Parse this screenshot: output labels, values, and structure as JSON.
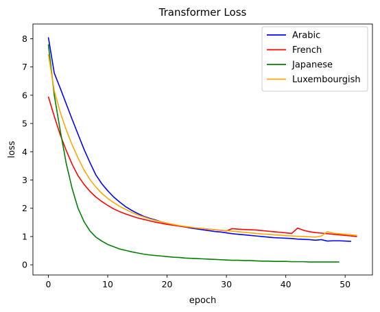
{
  "chart_data": {
    "type": "line",
    "title": "Transformer Loss",
    "xlabel": "epoch",
    "ylabel": "loss",
    "xlim": [
      -2.6,
      54.6
    ],
    "ylim": [
      -0.36,
      8.52
    ],
    "xticks": [
      0,
      10,
      20,
      30,
      40,
      50
    ],
    "yticks": [
      0,
      1,
      2,
      3,
      4,
      5,
      6,
      7,
      8
    ],
    "grid": false,
    "legend_position": "top-right",
    "series": [
      {
        "name": "Arabic",
        "color": "#0000ff",
        "x": [
          0,
          1,
          2,
          3,
          4,
          5,
          6,
          7,
          8,
          9,
          10,
          11,
          12,
          13,
          14,
          15,
          16,
          17,
          18,
          19,
          20,
          21,
          22,
          23,
          24,
          25,
          26,
          27,
          28,
          29,
          30,
          31,
          32,
          33,
          34,
          35,
          36,
          37,
          38,
          39,
          40,
          41,
          42,
          43,
          44,
          45,
          46,
          47,
          48,
          49,
          50,
          51
        ],
        "y": [
          8.05,
          6.78,
          6.25,
          5.7,
          5.15,
          4.62,
          4.09,
          3.62,
          3.18,
          2.87,
          2.62,
          2.4,
          2.22,
          2.06,
          1.93,
          1.82,
          1.72,
          1.65,
          1.59,
          1.52,
          1.47,
          1.42,
          1.38,
          1.34,
          1.3,
          1.27,
          1.24,
          1.21,
          1.18,
          1.16,
          1.13,
          1.1,
          1.08,
          1.06,
          1.04,
          1.02,
          1.0,
          0.98,
          0.96,
          0.95,
          0.94,
          0.93,
          0.91,
          0.9,
          0.89,
          0.87,
          0.89,
          0.84,
          0.85,
          0.85,
          0.84,
          0.83
        ]
      },
      {
        "name": "French",
        "color": "#ff0000",
        "x": [
          0,
          1,
          2,
          3,
          4,
          5,
          6,
          7,
          8,
          9,
          10,
          11,
          12,
          13,
          14,
          15,
          16,
          17,
          18,
          19,
          20,
          21,
          22,
          23,
          24,
          25,
          26,
          27,
          28,
          29,
          30,
          31,
          32,
          33,
          34,
          35,
          36,
          37,
          38,
          39,
          40,
          41,
          42,
          43,
          44,
          45,
          46,
          47,
          48,
          49,
          50,
          51,
          52
        ],
        "y": [
          5.95,
          5.25,
          4.6,
          4.05,
          3.56,
          3.15,
          2.85,
          2.6,
          2.4,
          2.24,
          2.1,
          1.98,
          1.88,
          1.8,
          1.73,
          1.66,
          1.61,
          1.56,
          1.51,
          1.47,
          1.43,
          1.4,
          1.37,
          1.34,
          1.32,
          1.3,
          1.28,
          1.26,
          1.24,
          1.22,
          1.2,
          1.28,
          1.26,
          1.25,
          1.24,
          1.23,
          1.21,
          1.19,
          1.17,
          1.15,
          1.13,
          1.11,
          1.3,
          1.22,
          1.17,
          1.14,
          1.12,
          1.1,
          1.08,
          1.06,
          1.04,
          1.02,
          1.0
        ]
      },
      {
        "name": "Japanese",
        "color": "#008000",
        "x": [
          0,
          1,
          2,
          3,
          4,
          5,
          6,
          7,
          8,
          9,
          10,
          11,
          12,
          13,
          14,
          15,
          16,
          17,
          18,
          19,
          20,
          21,
          22,
          23,
          24,
          25,
          26,
          27,
          28,
          29,
          30,
          31,
          32,
          33,
          34,
          35,
          36,
          37,
          38,
          39,
          40,
          41,
          42,
          43,
          44,
          45,
          46,
          47,
          48,
          49
        ],
        "y": [
          7.8,
          6.0,
          4.75,
          3.6,
          2.7,
          2.0,
          1.53,
          1.2,
          0.98,
          0.84,
          0.72,
          0.64,
          0.56,
          0.51,
          0.46,
          0.42,
          0.38,
          0.35,
          0.33,
          0.31,
          0.29,
          0.27,
          0.26,
          0.24,
          0.23,
          0.22,
          0.21,
          0.2,
          0.19,
          0.18,
          0.17,
          0.16,
          0.16,
          0.15,
          0.15,
          0.14,
          0.13,
          0.13,
          0.12,
          0.12,
          0.12,
          0.11,
          0.11,
          0.11,
          0.1,
          0.1,
          0.1,
          0.1,
          0.1,
          0.1
        ]
      },
      {
        "name": "Luxembourgish",
        "color": "#ffa500",
        "x": [
          0,
          1,
          2,
          3,
          4,
          5,
          6,
          7,
          8,
          9,
          10,
          11,
          12,
          13,
          14,
          15,
          16,
          17,
          18,
          19,
          20,
          21,
          22,
          23,
          24,
          25,
          26,
          27,
          28,
          29,
          30,
          31,
          32,
          33,
          34,
          35,
          36,
          37,
          38,
          39,
          40,
          41,
          42,
          43,
          44,
          45,
          46,
          47,
          48,
          49,
          50,
          51,
          52
        ],
        "y": [
          7.45,
          6.15,
          5.4,
          4.78,
          4.25,
          3.78,
          3.36,
          3.02,
          2.75,
          2.53,
          2.35,
          2.2,
          2.07,
          1.96,
          1.86,
          1.77,
          1.7,
          1.63,
          1.57,
          1.52,
          1.47,
          1.43,
          1.39,
          1.36,
          1.33,
          1.3,
          1.28,
          1.26,
          1.24,
          1.22,
          1.21,
          1.19,
          1.17,
          1.15,
          1.13,
          1.11,
          1.09,
          1.08,
          1.06,
          1.05,
          1.03,
          1.02,
          1.01,
          1.0,
          0.99,
          0.98,
          1.02,
          1.17,
          1.12,
          1.1,
          1.08,
          1.06,
          1.04
        ]
      }
    ]
  }
}
